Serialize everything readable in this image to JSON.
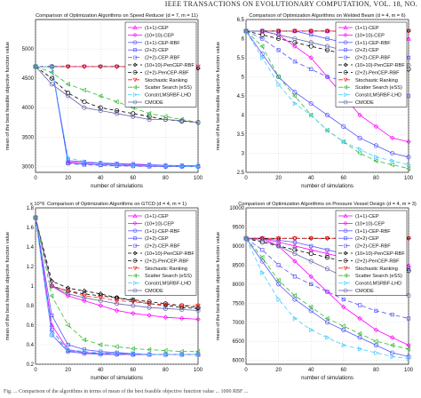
{
  "page": {
    "header": "IEEE TRANSACTIONS ON EVOLUTIONARY COMPUTATION, VOL. 18, NO. ",
    "caption": "Fig. ... Comparison of the algorithms in terms of mean of the best feasible objective function value ... 1000 RBF ..."
  },
  "legend_entries": [
    "(1+1)-CEP",
    "(10+10)-CEP",
    "(1+1)-CEP-RBF",
    "(2+2)-CEP",
    "(2+2)-CEP-RBF",
    "(10+10)-PenCEP-RBF",
    "(2+2)-PenCEP-RBF",
    "Stochastic Ranking",
    "Scatter Search (eSS)",
    "ConstrLMSRBF-LHD",
    "CMODE"
  ],
  "series_styles": [
    {
      "color": "#ff00ff",
      "marker": "triangle-up",
      "dash": ""
    },
    {
      "color": "#ff00ff",
      "marker": "diamond",
      "dash": ""
    },
    {
      "color": "#5555ff",
      "marker": "circle",
      "dash": ""
    },
    {
      "color": "#5555ff",
      "marker": "square",
      "dash": ""
    },
    {
      "color": "#5555ff",
      "marker": "square",
      "dash": "5,3"
    },
    {
      "color": "#000000",
      "marker": "diamond",
      "dash": "4,3"
    },
    {
      "color": "#000000",
      "marker": "circle",
      "dash": "4,3"
    },
    {
      "color": "#ff2222",
      "marker": "triangle-down",
      "dash": "5,3"
    },
    {
      "color": "#33bb33",
      "marker": "triangle-left",
      "dash": "5,3"
    },
    {
      "color": "#44ccff",
      "marker": "triangle-right",
      "dash": "5,3"
    },
    {
      "color": "#6666aa",
      "marker": "circle",
      "dash": ""
    }
  ],
  "chart_data": [
    {
      "type": "line",
      "title": "Comparison of Optimization Algorithms on Speed Reducer (d = 7, m = 11)",
      "xlabel": "number of simulations",
      "ylabel": "mean of the best feasible objective function value",
      "xlim": [
        0,
        100
      ],
      "ylim": [
        2900,
        5500
      ],
      "xticks": [
        0,
        20,
        40,
        60,
        80,
        100
      ],
      "yticks": [
        3000,
        3500,
        4000,
        4500,
        5000
      ],
      "exponent": "",
      "grid": true,
      "legend": "top-right",
      "x": [
        0,
        10,
        20,
        30,
        40,
        50,
        60,
        70,
        80,
        90,
        100
      ],
      "series": [
        {
          "name": "(1+1)-CEP",
          "values": [
            4700,
            4700,
            3080,
            3060,
            3050,
            3040,
            3030,
            3020,
            3015,
            3010,
            3005
          ]
        },
        {
          "name": "(10+10)-CEP",
          "values": [
            4700,
            4700,
            4700,
            4700,
            4700,
            4700,
            4700,
            4690,
            4680,
            4680,
            4670
          ]
        },
        {
          "name": "(1+1)-CEP-RBF",
          "values": [
            4700,
            4700,
            3060,
            3040,
            3030,
            3020,
            3010,
            3005,
            3000,
            3000,
            3000
          ]
        },
        {
          "name": "(2+2)-CEP",
          "values": [
            4700,
            4700,
            3100,
            3080,
            3060,
            3050,
            3040,
            3030,
            3020,
            3015,
            3010
          ]
        },
        {
          "name": "(2+2)-CEP-RBF",
          "values": [
            4700,
            4700,
            3050,
            3030,
            3020,
            3010,
            3005,
            3000,
            3000,
            3000,
            3000
          ]
        },
        {
          "name": "(10+10)-PenCEP-RBF",
          "values": [
            4700,
            4700,
            4700,
            4700,
            4700,
            4700,
            4700,
            4690,
            4680,
            4680,
            4670
          ]
        },
        {
          "name": "(2+2)-PenCEP-RBF",
          "values": [
            4700,
            4500,
            4250,
            4100,
            4000,
            3950,
            3900,
            3850,
            3800,
            3770,
            3750
          ]
        },
        {
          "name": "Stochastic Ranking",
          "values": [
            4700,
            4700,
            4700,
            4700,
            4700,
            4700,
            4700,
            4700,
            4700,
            4700,
            4700
          ]
        },
        {
          "name": "Scatter Search (eSS)",
          "values": [
            4700,
            4600,
            4400,
            4300,
            4200,
            4100,
            4000,
            3900,
            3850,
            3800,
            3750
          ]
        },
        {
          "name": "ConstrLMSRBF-LHD",
          "values": [
            4700,
            4700,
            3150,
            3080,
            3050,
            3030,
            3020,
            3015,
            3010,
            3005,
            3000
          ]
        },
        {
          "name": "CMODE",
          "values": [
            4700,
            4400,
            4200,
            4000,
            3950,
            3900,
            3850,
            3800,
            3800,
            3780,
            3750
          ]
        }
      ]
    },
    {
      "type": "line",
      "title": "Comparison of Optimization Algorithms on Welded Beam (d = 4, m = 6)",
      "xlabel": "number of simulations",
      "ylabel": "mean of the best feasible objective function value",
      "xlim": [
        0,
        100
      ],
      "ylim": [
        2.5,
        6.5
      ],
      "xticks": [
        0,
        20,
        40,
        60,
        80,
        100
      ],
      "yticks": [
        2.5,
        3,
        3.5,
        4,
        4.5,
        5,
        5.5,
        6,
        6.5
      ],
      "exponent": "",
      "grid": true,
      "legend": "top-right",
      "x": [
        0,
        10,
        20,
        30,
        40,
        50,
        60,
        70,
        80,
        90,
        100
      ],
      "series": [
        {
          "name": "(1+1)-CEP",
          "values": [
            6.2,
            6.2,
            6.2,
            6.2,
            6.2,
            6.2,
            6.2,
            6.2,
            6.1,
            6.1,
            6.0
          ]
        },
        {
          "name": "(10+10)-CEP",
          "values": [
            6.2,
            6.2,
            6.1,
            5.8,
            5.5,
            5.0,
            4.5,
            4.0,
            3.7,
            3.4,
            3.3
          ]
        },
        {
          "name": "(1+1)-CEP-RBF",
          "values": [
            6.2,
            5.6,
            5.0,
            4.6,
            4.3,
            4.0,
            3.7,
            3.4,
            3.2,
            3.0,
            2.9
          ]
        },
        {
          "name": "(2+2)-CEP",
          "values": [
            6.2,
            6.2,
            6.2,
            6.2,
            6.1,
            6.0,
            5.9,
            5.8,
            5.7,
            5.6,
            5.5
          ]
        },
        {
          "name": "(2+2)-CEP-RBF",
          "values": [
            6.2,
            6.0,
            5.7,
            5.4,
            5.2,
            5.0,
            4.9,
            4.8,
            4.7,
            4.6,
            4.5
          ]
        },
        {
          "name": "(10+10)-PenCEP-RBF",
          "values": [
            6.2,
            6.2,
            6.2,
            6.2,
            6.2,
            6.2,
            6.2,
            6.2,
            6.2,
            6.2,
            6.2
          ]
        },
        {
          "name": "(2+2)-PenCEP-RBF",
          "values": [
            6.2,
            6.1,
            6.0,
            5.9,
            5.8,
            5.7,
            5.6,
            5.5,
            5.4,
            5.3,
            5.2
          ]
        },
        {
          "name": "Stochastic Ranking",
          "values": [
            6.2,
            6.2,
            6.2,
            6.2,
            6.2,
            6.2,
            6.2,
            6.2,
            6.2,
            6.2,
            6.2
          ]
        },
        {
          "name": "Scatter Search (eSS)",
          "values": [
            6.2,
            5.8,
            5.0,
            4.5,
            4.0,
            3.6,
            3.3,
            3.0,
            2.8,
            2.7,
            2.6
          ]
        },
        {
          "name": "ConstrLMSRBF-LHD",
          "values": [
            6.2,
            5.5,
            4.8,
            4.3,
            4.0,
            3.6,
            3.3,
            3.1,
            2.9,
            2.8,
            2.7
          ]
        },
        {
          "name": "CMODE",
          "values": [
            6.2,
            6.2,
            6.1,
            6.0,
            5.9,
            5.8,
            5.7,
            5.6,
            5.5,
            5.4,
            5.3
          ]
        }
      ]
    },
    {
      "type": "line",
      "title": "Comparison of Optimization Algorithms on GTCD (d = 4, m = 1)",
      "xlabel": "number of simulations",
      "ylabel": "mean of the best feasible objective function value",
      "xlim": [
        0,
        100
      ],
      "ylim": [
        0.2,
        1.8
      ],
      "xticks": [
        0,
        20,
        40,
        60,
        80,
        100
      ],
      "yticks": [
        0.2,
        0.4,
        0.6,
        0.8,
        1,
        1.2,
        1.4,
        1.6,
        1.8
      ],
      "exponent": "x 10^6",
      "grid": true,
      "legend": "top-right",
      "x": [
        0,
        10,
        20,
        30,
        40,
        50,
        60,
        70,
        80,
        90,
        100
      ],
      "series": [
        {
          "name": "(1+1)-CEP",
          "values": [
            1.7,
            0.6,
            0.35,
            0.32,
            0.31,
            0.31,
            0.3,
            0.3,
            0.3,
            0.3,
            0.3
          ]
        },
        {
          "name": "(10+10)-CEP",
          "values": [
            1.7,
            1.0,
            0.9,
            0.85,
            0.8,
            0.75,
            0.72,
            0.7,
            0.68,
            0.67,
            0.66
          ]
        },
        {
          "name": "(1+1)-CEP-RBF",
          "values": [
            1.7,
            0.5,
            0.33,
            0.31,
            0.3,
            0.3,
            0.3,
            0.3,
            0.3,
            0.3,
            0.3
          ]
        },
        {
          "name": "(2+2)-CEP",
          "values": [
            1.7,
            0.7,
            0.4,
            0.35,
            0.33,
            0.32,
            0.31,
            0.3,
            0.3,
            0.3,
            0.3
          ]
        },
        {
          "name": "(2+2)-CEP-RBF",
          "values": [
            1.7,
            0.55,
            0.34,
            0.32,
            0.31,
            0.3,
            0.3,
            0.3,
            0.3,
            0.3,
            0.3
          ]
        },
        {
          "name": "(10+10)-PenCEP-RBF",
          "values": [
            1.7,
            1.05,
            0.98,
            0.95,
            0.92,
            0.88,
            0.85,
            0.82,
            0.8,
            0.78,
            0.77
          ]
        },
        {
          "name": "(2+2)-PenCEP-RBF",
          "values": [
            1.7,
            1.0,
            0.95,
            0.92,
            0.9,
            0.88,
            0.86,
            0.84,
            0.82,
            0.8,
            0.78
          ]
        },
        {
          "name": "Stochastic Ranking",
          "values": [
            1.7,
            1.0,
            0.95,
            0.9,
            0.88,
            0.85,
            0.84,
            0.82,
            0.81,
            0.8,
            0.8
          ]
        },
        {
          "name": "Scatter Search (eSS)",
          "values": [
            1.7,
            0.9,
            0.6,
            0.45,
            0.4,
            0.38,
            0.36,
            0.35,
            0.34,
            0.33,
            0.33
          ]
        },
        {
          "name": "ConstrLMSRBF-LHD",
          "values": [
            1.7,
            0.5,
            0.35,
            0.33,
            0.32,
            0.31,
            0.31,
            0.3,
            0.3,
            0.3,
            0.3
          ]
        },
        {
          "name": "CMODE",
          "values": [
            1.7,
            1.0,
            0.92,
            0.88,
            0.85,
            0.82,
            0.8,
            0.78,
            0.77,
            0.76,
            0.75
          ]
        }
      ]
    },
    {
      "type": "line",
      "title": "Comparison of Optimization Algorithms on Pressure Vessel Design (d = 4, m = 3)",
      "xlabel": "number of simulations",
      "ylabel": "mean of the best feasible objective function value",
      "xlim": [
        0,
        100
      ],
      "ylim": [
        5900,
        10000
      ],
      "xticks": [
        0,
        20,
        40,
        60,
        80,
        100
      ],
      "yticks": [
        6000,
        6500,
        7000,
        7500,
        8000,
        8500,
        9000,
        9500,
        10000
      ],
      "exponent": "",
      "grid": true,
      "legend": "top-right",
      "x": [
        0,
        10,
        20,
        30,
        40,
        50,
        60,
        70,
        80,
        90,
        100
      ],
      "series": [
        {
          "name": "(1+1)-CEP",
          "values": [
            9200,
            9200,
            9100,
            9000,
            8900,
            8800,
            8700,
            8650,
            8600,
            8550,
            8500
          ]
        },
        {
          "name": "(10+10)-CEP",
          "values": [
            9200,
            9200,
            9000,
            8600,
            8200,
            7800,
            7400,
            7100,
            6800,
            6600,
            6400
          ]
        },
        {
          "name": "(1+1)-CEP-RBF",
          "values": [
            9200,
            8600,
            8000,
            7600,
            7300,
            7000,
            6800,
            6600,
            6400,
            6200,
            6100
          ]
        },
        {
          "name": "(2+2)-CEP",
          "values": [
            9200,
            9200,
            9150,
            9100,
            9000,
            8900,
            8800,
            8700,
            8600,
            8500,
            8400
          ]
        },
        {
          "name": "(2+2)-CEP-RBF",
          "values": [
            9200,
            8900,
            8500,
            8200,
            8000,
            7800,
            7600,
            7450,
            7300,
            7200,
            7100
          ]
        },
        {
          "name": "(10+10)-PenCEP-RBF",
          "values": [
            9200,
            9200,
            9200,
            9200,
            9200,
            9200,
            9200,
            9200,
            9200,
            9200,
            9200
          ]
        },
        {
          "name": "(2+2)-PenCEP-RBF",
          "values": [
            9200,
            9100,
            9000,
            8900,
            8800,
            8700,
            8600,
            8500,
            8450,
            8400,
            8350
          ]
        },
        {
          "name": "Stochastic Ranking",
          "values": [
            9200,
            9200,
            9200,
            9200,
            9200,
            9200,
            9200,
            9200,
            9200,
            9200,
            9200
          ]
        },
        {
          "name": "Scatter Search (eSS)",
          "values": [
            9200,
            8700,
            8100,
            7700,
            7400,
            7100,
            6900,
            6700,
            6500,
            6400,
            6300
          ]
        },
        {
          "name": "ConstrLMSRBF-LHD",
          "values": [
            9200,
            8300,
            7600,
            7100,
            6800,
            6600,
            6400,
            6300,
            6200,
            6100,
            6050
          ]
        },
        {
          "name": "CMODE",
          "values": [
            9200,
            9150,
            9000,
            8800,
            8600,
            8400,
            8200,
            8000,
            7900,
            7800,
            7700
          ]
        }
      ]
    }
  ]
}
